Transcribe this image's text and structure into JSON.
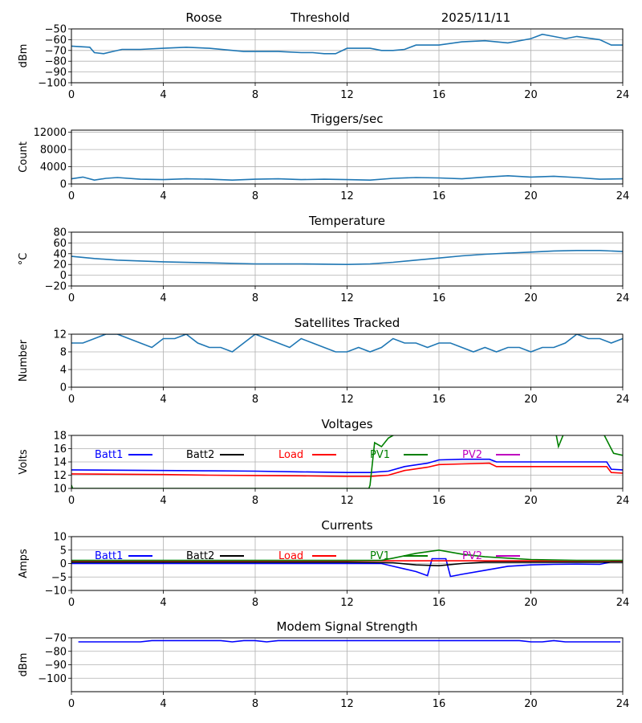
{
  "header": {
    "station": "Roose",
    "mode": "Threshold",
    "date": "2025/11/11"
  },
  "colors": {
    "default": "#1f77b4",
    "batt1": "#0000ff",
    "batt2": "#000000",
    "load": "#ff0000",
    "pv1": "#008000",
    "pv2": "#bf00bf",
    "grid": "#b0b0b0"
  },
  "chart_data": [
    {
      "id": "rssi",
      "type": "line",
      "title": "",
      "ylabel": "dBm",
      "ylim": [
        -100,
        -50
      ],
      "yticks": [
        -50,
        -60,
        -70,
        -80,
        -90,
        -100
      ],
      "xlim": [
        0,
        24
      ],
      "xticks": [
        0,
        4,
        8,
        12,
        16,
        20,
        24
      ],
      "grid": true,
      "series": [
        {
          "color": "#1f77b4",
          "x": [
            0,
            0.8,
            1.0,
            1.4,
            1.8,
            2.2,
            3,
            4,
            5,
            6,
            7.5,
            8,
            9,
            10,
            10.5,
            11,
            11.5,
            12,
            13,
            13.5,
            14,
            14.5,
            15,
            15.5,
            16,
            17,
            18,
            19,
            20,
            20.5,
            21,
            21.5,
            22,
            23,
            23.5,
            24
          ],
          "y": [
            -66,
            -67,
            -72,
            -73,
            -71,
            -69,
            -69,
            -68,
            -67,
            -68,
            -71,
            -71,
            -71,
            -72,
            -72,
            -73,
            -73,
            -68,
            -68,
            -70,
            -70,
            -69,
            -65,
            -65,
            -65,
            -62,
            -61,
            -63,
            -59,
            -55,
            -57,
            -59,
            -57,
            -60,
            -65,
            -65
          ]
        }
      ]
    },
    {
      "id": "triggers",
      "type": "line",
      "title": "Triggers/sec",
      "ylabel": "Count",
      "ylim": [
        0,
        12500
      ],
      "yticks": [
        0,
        4000,
        8000,
        12000
      ],
      "xlim": [
        0,
        24
      ],
      "xticks": [
        0,
        4,
        8,
        12,
        16,
        20,
        24
      ],
      "grid": true,
      "series": [
        {
          "color": "#1f77b4",
          "x": [
            0,
            0.5,
            1,
            1.5,
            2,
            3,
            4,
            5,
            6,
            7,
            8,
            9,
            10,
            11,
            12,
            13,
            14,
            15,
            16,
            17,
            18,
            19,
            20,
            21,
            22,
            23,
            24
          ],
          "y": [
            1200,
            1600,
            900,
            1300,
            1500,
            1100,
            1000,
            1200,
            1100,
            900,
            1100,
            1200,
            1000,
            1100,
            1000,
            900,
            1300,
            1500,
            1400,
            1200,
            1600,
            1900,
            1600,
            1800,
            1500,
            1100,
            1200
          ]
        }
      ]
    },
    {
      "id": "temperature",
      "type": "line",
      "title": "Temperature",
      "ylabel": "°C",
      "ylim": [
        -20,
        80
      ],
      "yticks": [
        -20,
        0,
        20,
        40,
        60,
        80
      ],
      "xlim": [
        0,
        24
      ],
      "xticks": [
        0,
        4,
        8,
        12,
        16,
        20,
        24
      ],
      "grid": true,
      "series": [
        {
          "color": "#1f77b4",
          "x": [
            0,
            1,
            2,
            4,
            6,
            8,
            10,
            12,
            13,
            14,
            15,
            16,
            17,
            18,
            19,
            20,
            21,
            22,
            23,
            24
          ],
          "y": [
            35,
            31,
            28,
            25,
            23,
            21,
            21,
            20,
            21,
            24,
            28,
            32,
            36,
            39,
            41,
            43,
            45,
            46,
            46,
            44
          ]
        }
      ]
    },
    {
      "id": "satellites",
      "type": "line",
      "title": "Satellites Tracked",
      "ylabel": "Number",
      "ylim": [
        0,
        12
      ],
      "yticks": [
        0,
        4,
        8,
        12
      ],
      "xlim": [
        0,
        24
      ],
      "xticks": [
        0,
        4,
        8,
        12,
        16,
        20,
        24
      ],
      "grid": true,
      "series": [
        {
          "color": "#1f77b4",
          "x": [
            0,
            0.5,
            1,
            1.5,
            2,
            2.5,
            3,
            3.5,
            4,
            4.5,
            5,
            5.5,
            6,
            6.5,
            7,
            7.5,
            8,
            8.5,
            9,
            9.5,
            10,
            10.5,
            11,
            11.5,
            12,
            12.5,
            13,
            13.5,
            14,
            14.5,
            15,
            15.5,
            16,
            16.5,
            17,
            17.5,
            18,
            18.5,
            19,
            19.5,
            20,
            20.5,
            21,
            21.5,
            22,
            22.5,
            23,
            23.5,
            24
          ],
          "y": [
            10,
            10,
            11,
            12,
            12,
            11,
            10,
            9,
            11,
            11,
            12,
            10,
            9,
            9,
            8,
            10,
            12,
            11,
            10,
            9,
            11,
            10,
            9,
            8,
            8,
            9,
            8,
            9,
            11,
            10,
            10,
            9,
            10,
            10,
            9,
            8,
            9,
            8,
            9,
            9,
            8,
            9,
            9,
            10,
            12,
            11,
            11,
            10,
            11
          ]
        }
      ]
    },
    {
      "id": "voltages",
      "type": "line",
      "title": "Voltages",
      "ylabel": "Volts",
      "ylim": [
        10,
        18
      ],
      "yticks": [
        10,
        12,
        14,
        16,
        18
      ],
      "xlim": [
        0,
        24
      ],
      "xticks": [
        0,
        4,
        8,
        12,
        16,
        20,
        24
      ],
      "grid": true,
      "legend": [
        "Batt1",
        "Batt2",
        "Load",
        "PV1",
        "PV2"
      ],
      "series": [
        {
          "name": "Batt1",
          "color": "#0000ff",
          "x": [
            0,
            2,
            4,
            6,
            8,
            10,
            12,
            13,
            13.8,
            14.5,
            15.5,
            16,
            17,
            18.2,
            18.5,
            20,
            23.3,
            23.5,
            24
          ],
          "y": [
            12.8,
            12.75,
            12.7,
            12.65,
            12.6,
            12.5,
            12.4,
            12.4,
            12.6,
            13.3,
            13.8,
            14.3,
            14.4,
            14.4,
            14.0,
            14.0,
            14.0,
            12.9,
            12.8
          ]
        },
        {
          "name": "Batt2",
          "color": "#000000",
          "x": [],
          "y": []
        },
        {
          "name": "Load",
          "color": "#ff0000",
          "x": [
            0,
            2,
            4,
            6,
            8,
            10,
            12,
            13,
            13.8,
            14.5,
            15.5,
            16,
            17,
            18.2,
            18.5,
            20,
            23.3,
            23.5,
            24
          ],
          "y": [
            12.2,
            12.15,
            12.1,
            12.0,
            11.95,
            11.9,
            11.8,
            11.8,
            12.0,
            12.7,
            13.2,
            13.6,
            13.7,
            13.8,
            13.3,
            13.3,
            13.3,
            12.4,
            12.3
          ]
        },
        {
          "name": "PV1",
          "color": "#008000",
          "x": [
            0,
            0.05,
            12.95,
            13.0,
            13.2,
            13.5,
            13.8,
            14.0,
            14.5,
            21,
            21.2,
            21.4,
            21.7,
            22.5,
            23.2,
            23.6,
            24
          ],
          "y": [
            10.5,
            10,
            10,
            10.5,
            16.9,
            16.3,
            17.6,
            18,
            19,
            20,
            16.3,
            18,
            20,
            20,
            18,
            15.3,
            15
          ]
        },
        {
          "name": "PV2",
          "color": "#bf00bf",
          "x": [],
          "y": []
        }
      ]
    },
    {
      "id": "currents",
      "type": "line",
      "title": "Currents",
      "ylabel": "Amps",
      "ylim": [
        -10,
        10
      ],
      "yticks": [
        -10,
        -5,
        0,
        5,
        10
      ],
      "xlim": [
        0,
        24
      ],
      "xticks": [
        0,
        4,
        8,
        12,
        16,
        20,
        24
      ],
      "grid": true,
      "legend": [
        "Batt1",
        "Batt2",
        "Load",
        "PV1",
        "PV2"
      ],
      "series": [
        {
          "name": "Batt1",
          "color": "#0000ff",
          "x": [
            0,
            4,
            8,
            12,
            13.5,
            14,
            14.5,
            15,
            15.5,
            15.7,
            16.3,
            16.5,
            17,
            18,
            19,
            20,
            21,
            22,
            23,
            23.5,
            24
          ],
          "y": [
            0,
            0,
            0,
            0,
            0,
            -1,
            -2,
            -3,
            -4.5,
            1.8,
            1.8,
            -4.8,
            -4,
            -2.5,
            -1,
            -0.5,
            -0.3,
            -0.2,
            -0.3,
            0.6,
            0.6
          ]
        },
        {
          "name": "Batt2",
          "color": "#000000",
          "x": [
            0,
            4,
            8,
            12,
            14,
            15,
            16,
            17,
            18,
            24
          ],
          "y": [
            0.5,
            0.5,
            0.5,
            0.5,
            0.3,
            -0.5,
            -0.8,
            0,
            0.5,
            0.5
          ]
        },
        {
          "name": "Load",
          "color": "#ff0000",
          "x": [
            0,
            4,
            8,
            12,
            16,
            20,
            24
          ],
          "y": [
            1.0,
            1.0,
            1.0,
            1.0,
            1.0,
            1.0,
            1.0
          ]
        },
        {
          "name": "PV1",
          "color": "#008000",
          "x": [
            0,
            4,
            8,
            12,
            13.5,
            14,
            15,
            16,
            17,
            18,
            19,
            20,
            21,
            22,
            23,
            24
          ],
          "y": [
            1.2,
            1.2,
            1.2,
            1.2,
            1.2,
            2,
            3.8,
            5,
            3.5,
            2.5,
            2,
            1.5,
            1.3,
            1.2,
            1.2,
            1.2
          ]
        },
        {
          "name": "PV2",
          "color": "#bf00bf",
          "x": [],
          "y": []
        }
      ]
    },
    {
      "id": "modem",
      "type": "line",
      "title": "Modem Signal Strength",
      "ylabel": "dBm",
      "ylim": [
        -110,
        -70
      ],
      "yticks": [
        -70,
        -80,
        -90,
        -100
      ],
      "xlim": [
        0,
        24
      ],
      "xticks": [
        0,
        4,
        8,
        12,
        16,
        20,
        24
      ],
      "grid": true,
      "series": [
        {
          "color": "#0000ff",
          "x": [
            0.3,
            3,
            3.5,
            6.5,
            7,
            7.5,
            8,
            8.5,
            9,
            9.5,
            10,
            19.5,
            20,
            20.5,
            21,
            21.5,
            23.9
          ],
          "y": [
            -73,
            -73,
            -72,
            -72,
            -73,
            -72,
            -72,
            -73,
            -72,
            -72,
            -72,
            -72,
            -73,
            -73,
            -72,
            -73,
            -73
          ]
        }
      ]
    }
  ]
}
